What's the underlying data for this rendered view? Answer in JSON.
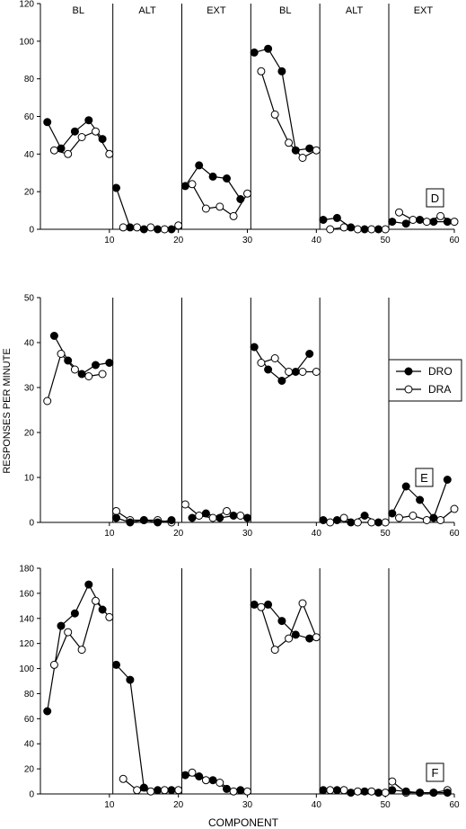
{
  "figure": {
    "ylabel": "RESPONSES PER MINUTE",
    "xlabel": "COMPONENT"
  },
  "legend": {
    "entries": [
      {
        "name": "DRO",
        "marker": "filled"
      },
      {
        "name": "DRA",
        "marker": "open"
      }
    ],
    "placement": "right of middle panel"
  },
  "chart_data": [
    {
      "type": "line",
      "panel_label": "D",
      "xlim": [
        0,
        60
      ],
      "ylim": [
        0,
        120
      ],
      "yticks": [
        0,
        20,
        40,
        60,
        80,
        100,
        120
      ],
      "xticks": [
        10,
        20,
        30,
        40,
        50,
        60
      ],
      "phase_boundaries": [
        10.5,
        20.5,
        30.5,
        40.5,
        50.5
      ],
      "phases": [
        {
          "label": "BL",
          "center": 5.5
        },
        {
          "label": "ALT",
          "center": 15.5
        },
        {
          "label": "EXT",
          "center": 25.5
        },
        {
          "label": "BL",
          "center": 35.5
        },
        {
          "label": "ALT",
          "center": 45.5
        },
        {
          "label": "EXT",
          "center": 55.5
        }
      ],
      "series": [
        {
          "name": "DRO",
          "segments": [
            {
              "x": [
                1,
                3,
                5,
                7,
                9
              ],
              "y": [
                57,
                43,
                52,
                58,
                48
              ]
            },
            {
              "x": [
                11,
                13,
                15,
                17,
                19
              ],
              "y": [
                22,
                1,
                0,
                0,
                0
              ]
            },
            {
              "x": [
                21,
                23,
                25,
                27,
                29
              ],
              "y": [
                23,
                34,
                28,
                27,
                16
              ]
            },
            {
              "x": [
                31,
                33,
                35,
                37,
                39
              ],
              "y": [
                94,
                96,
                84,
                42,
                43
              ]
            },
            {
              "x": [
                41,
                43,
                45,
                47,
                49
              ],
              "y": [
                5,
                6,
                1,
                0,
                0
              ]
            },
            {
              "x": [
                51,
                53,
                55,
                57,
                59
              ],
              "y": [
                4,
                3,
                5,
                4,
                4
              ]
            }
          ]
        },
        {
          "name": "DRA",
          "segments": [
            {
              "x": [
                2,
                4,
                6,
                8,
                10
              ],
              "y": [
                42,
                40,
                49,
                52,
                40
              ]
            },
            {
              "x": [
                12,
                14,
                16,
                18,
                20
              ],
              "y": [
                1,
                1,
                1,
                0,
                2
              ]
            },
            {
              "x": [
                22,
                24,
                26,
                28,
                30
              ],
              "y": [
                24,
                11,
                12,
                7,
                19
              ]
            },
            {
              "x": [
                32,
                34,
                36,
                38,
                40
              ],
              "y": [
                84,
                61,
                46,
                38,
                42
              ]
            },
            {
              "x": [
                42,
                44,
                46,
                48,
                50
              ],
              "y": [
                0,
                1,
                0,
                0,
                0
              ]
            },
            {
              "x": [
                52,
                54,
                56,
                58,
                60
              ],
              "y": [
                9,
                5,
                4,
                7,
                4
              ]
            }
          ]
        }
      ]
    },
    {
      "type": "line",
      "panel_label": "E",
      "xlim": [
        0,
        60
      ],
      "ylim": [
        0,
        50
      ],
      "yticks": [
        0,
        10,
        20,
        30,
        40,
        50
      ],
      "xticks": [
        10,
        20,
        30,
        40,
        50,
        60
      ],
      "phase_boundaries": [
        10.5,
        20.5,
        30.5,
        40.5,
        50.5
      ],
      "series": [
        {
          "name": "DRO",
          "segments": [
            {
              "x": [
                2,
                4,
                6,
                8,
                10
              ],
              "y": [
                41.5,
                36,
                33,
                35,
                35.5
              ]
            },
            {
              "x": [
                11,
                13,
                15,
                17,
                19
              ],
              "y": [
                1,
                0,
                0.5,
                0,
                0.5
              ]
            },
            {
              "x": [
                22,
                24,
                26,
                28,
                30
              ],
              "y": [
                1,
                2,
                1,
                1.5,
                1
              ]
            },
            {
              "x": [
                31,
                33,
                35,
                37,
                39
              ],
              "y": [
                39,
                34,
                31.5,
                33.5,
                37.5
              ]
            },
            {
              "x": [
                41,
                43,
                45,
                47,
                49
              ],
              "y": [
                0.5,
                0.5,
                0,
                1.5,
                0
              ]
            },
            {
              "x": [
                51,
                53,
                55,
                57,
                59
              ],
              "y": [
                2,
                8,
                5,
                1,
                9.5
              ]
            }
          ]
        },
        {
          "name": "DRA",
          "segments": [
            {
              "x": [
                1,
                3,
                5,
                7,
                9
              ],
              "y": [
                27,
                37.5,
                34,
                32.5,
                33
              ]
            },
            {
              "x": [
                11,
                13,
                15,
                17,
                19
              ],
              "y": [
                2.5,
                0.5,
                0.5,
                0.5,
                0
              ]
            },
            {
              "x": [
                21,
                23,
                25,
                27,
                29
              ],
              "y": [
                4,
                1.5,
                1,
                2.5,
                1.5
              ]
            },
            {
              "x": [
                32,
                34,
                36,
                38,
                40
              ],
              "y": [
                35.5,
                36.5,
                33.5,
                33.5,
                33.5
              ]
            },
            {
              "x": [
                42,
                44,
                46,
                48,
                50
              ],
              "y": [
                0,
                1,
                0,
                0,
                0
              ]
            },
            {
              "x": [
                52,
                54,
                56,
                58,
                60
              ],
              "y": [
                1,
                1.5,
                0.5,
                0.5,
                3
              ]
            }
          ]
        }
      ]
    },
    {
      "type": "line",
      "panel_label": "F",
      "xlim": [
        0,
        60
      ],
      "ylim": [
        0,
        180
      ],
      "yticks": [
        0,
        20,
        40,
        60,
        80,
        100,
        120,
        140,
        160,
        180
      ],
      "xticks": [
        10,
        20,
        30,
        40,
        50,
        60
      ],
      "phase_boundaries": [
        10.5,
        20.5,
        30.5,
        40.5,
        50.5
      ],
      "series": [
        {
          "name": "DRO",
          "segments": [
            {
              "x": [
                1,
                3,
                5,
                7,
                9
              ],
              "y": [
                66,
                134,
                144,
                167,
                147
              ]
            },
            {
              "x": [
                11,
                13,
                15,
                17,
                19
              ],
              "y": [
                103,
                91,
                5,
                3,
                3
              ]
            },
            {
              "x": [
                21,
                23,
                25,
                27,
                29
              ],
              "y": [
                15,
                14,
                11,
                4,
                3
              ]
            },
            {
              "x": [
                31,
                33,
                35,
                37,
                39
              ],
              "y": [
                151,
                151,
                138,
                127,
                124
              ]
            },
            {
              "x": [
                41,
                43,
                45,
                47,
                49
              ],
              "y": [
                3,
                3,
                1,
                2,
                1
              ]
            },
            {
              "x": [
                51,
                53,
                55,
                57,
                59
              ],
              "y": [
                3,
                2,
                1,
                1,
                1
              ]
            }
          ]
        },
        {
          "name": "DRA",
          "segments": [
            {
              "x": [
                2,
                4,
                6,
                8,
                10
              ],
              "y": [
                103,
                129,
                115,
                154,
                141
              ]
            },
            {
              "x": [
                12,
                14,
                16,
                18,
                20
              ],
              "y": [
                12,
                3,
                2,
                3,
                3
              ]
            },
            {
              "x": [
                22,
                24,
                26,
                28,
                30
              ],
              "y": [
                17,
                11,
                9,
                2,
                2
              ]
            },
            {
              "x": [
                32,
                34,
                36,
                38,
                40
              ],
              "y": [
                149,
                115,
                124,
                152,
                125
              ]
            },
            {
              "x": [
                42,
                44,
                46,
                48,
                50
              ],
              "y": [
                3,
                3,
                2,
                2,
                1
              ]
            },
            {
              "x": [
                51,
                53,
                55,
                57,
                59
              ],
              "y": [
                10,
                1,
                1,
                1,
                3
              ]
            }
          ]
        }
      ]
    }
  ]
}
